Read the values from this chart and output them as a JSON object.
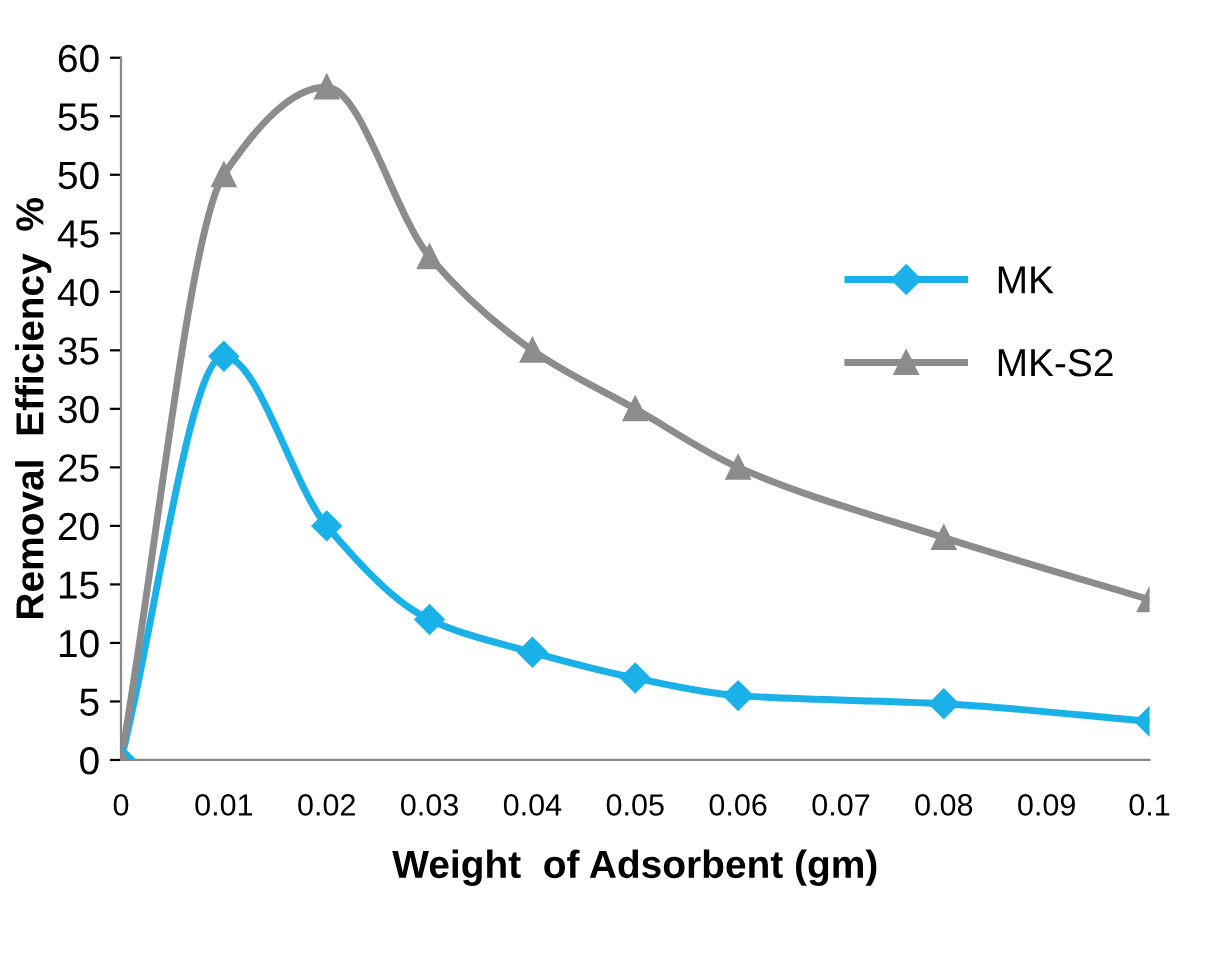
{
  "chart_data": {
    "type": "line",
    "xlabel": "Weight  of Adsorbent (gm)",
    "ylabel": "Removal  Efficiency  %",
    "xlim": [
      0,
      0.1
    ],
    "xticks": [
      0,
      0.01,
      0.02,
      0.03,
      0.04,
      0.05,
      0.06,
      0.07,
      0.08,
      0.09,
      0.1
    ],
    "ylim": [
      0,
      60
    ],
    "yticks": [
      0,
      5,
      10,
      15,
      20,
      25,
      30,
      35,
      40,
      45,
      50,
      55,
      60
    ],
    "grid": false,
    "legend": "right",
    "series": [
      {
        "name": "MK",
        "color": "#1ab0e8",
        "marker": "diamond",
        "x": [
          0,
          0.01,
          0.02,
          0.03,
          0.04,
          0.05,
          0.06,
          0.08,
          0.1
        ],
        "values": [
          0,
          34.5,
          20,
          12,
          9.2,
          7,
          5.5,
          4.8,
          3.3
        ]
      },
      {
        "name": "MK-S2",
        "color": "#8c8c8c",
        "marker": "triangle",
        "x": [
          0,
          0.01,
          0.02,
          0.03,
          0.04,
          0.05,
          0.06,
          0.08,
          0.1
        ],
        "values": [
          0,
          50,
          57.5,
          43,
          35,
          30,
          25,
          19,
          13.7
        ]
      }
    ]
  }
}
